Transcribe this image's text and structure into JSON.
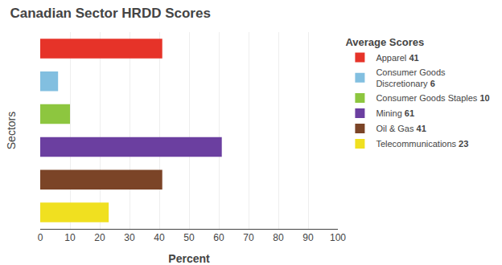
{
  "chart_data": {
    "type": "bar",
    "orientation": "horizontal",
    "title": "Canadian Sector HRDD Scores",
    "xlabel": "Percent",
    "ylabel": "Sectors",
    "legend_title": "Average Scores",
    "categories": [
      "Apparel",
      "Consumer Goods\nDiscretionary",
      "Consumer Goods Staples",
      "Mining",
      "Oil & Gas",
      "Telecommunications"
    ],
    "values": [
      41,
      6,
      10,
      61,
      41,
      23
    ],
    "colors": [
      "#e63329",
      "#82bfe0",
      "#8dc63f",
      "#6b3fa0",
      "#7b4427",
      "#f0e020"
    ],
    "xlim": [
      0,
      100
    ],
    "xticks": [
      0,
      10,
      20,
      30,
      40,
      50,
      60,
      70,
      80,
      90,
      100
    ],
    "grid": true,
    "legend": "right",
    "tick_labels": "x"
  }
}
